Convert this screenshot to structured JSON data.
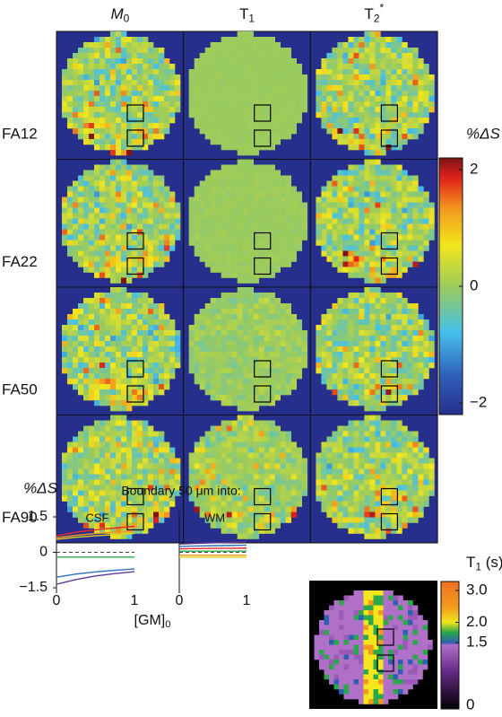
{
  "figure": {
    "columns": [
      {
        "text": "M",
        "sub": "0"
      },
      {
        "text": "T",
        "sub": "1"
      },
      {
        "text": "T",
        "sub": "2",
        "sup": "*"
      }
    ],
    "rows": [
      "FA12",
      "FA22",
      "FA50",
      "FA90"
    ],
    "colorbar": {
      "label": "%ΔS",
      "ylim": [
        -2.2,
        2.2
      ],
      "yticks": [
        2,
        0,
        {
          "value": -2,
          "label": "−2"
        }
      ]
    },
    "ylabel": "%ΔS",
    "subtitle": "Boundary 50 μm into:",
    "xlabel": {
      "text": "[GM]",
      "sub": "0"
    }
  },
  "chart_data": [
    {
      "type": "line",
      "title": "CSF",
      "x": [
        0,
        0.25,
        0.5,
        0.75,
        1
      ],
      "xlim": [
        0,
        1
      ],
      "xticks": [
        0,
        1
      ],
      "ylim": [
        -1.5,
        1.5
      ],
      "yticks": [
        1.5,
        0,
        {
          "value": -1.5,
          "label": "−1.5"
        }
      ],
      "series": [
        {
          "color": "#e8262d",
          "values": [
            0.7,
            0.85,
            0.95,
            1.03,
            1.1
          ]
        },
        {
          "color": "#f39a1e",
          "values": [
            0.62,
            0.72,
            0.8,
            0.86,
            0.9
          ]
        },
        {
          "color": "#e3d21b",
          "values": [
            0.55,
            0.64,
            0.7,
            0.75,
            0.8
          ]
        },
        {
          "color": "#2aa84a",
          "values": [
            -0.2,
            -0.2,
            -0.2,
            -0.2,
            -0.2
          ]
        },
        {
          "color": "#2f6fc0",
          "values": [
            -1.05,
            -0.92,
            -0.83,
            -0.76,
            -0.7
          ]
        },
        {
          "color": "#5b3a96",
          "values": [
            -1.35,
            -1.15,
            -1.0,
            -0.9,
            -0.82
          ]
        }
      ]
    },
    {
      "type": "line",
      "title": "WM",
      "x": [
        0,
        0.25,
        0.5,
        0.75,
        1
      ],
      "xlim": [
        0,
        1
      ],
      "xticks": [
        0,
        1
      ],
      "ylim": [
        -1.5,
        1.5
      ],
      "series": [
        {
          "color": "#5b3a96",
          "values": [
            0.35,
            0.38,
            0.4,
            0.42,
            0.44
          ]
        },
        {
          "color": "#2f6fc0",
          "values": [
            0.25,
            0.27,
            0.28,
            0.29,
            0.3
          ]
        },
        {
          "color": "#e8262d",
          "values": [
            0.15,
            0.16,
            0.17,
            0.17,
            0.18
          ]
        },
        {
          "color": "#2aa84a",
          "values": [
            0.05,
            0.05,
            0.05,
            0.05,
            0.05
          ]
        },
        {
          "color": "#f39a1e",
          "values": [
            -0.12,
            -0.12,
            -0.12,
            -0.12,
            -0.12
          ]
        },
        {
          "color": "#e3d21b",
          "values": [
            -0.2,
            -0.2,
            -0.2,
            -0.2,
            -0.2
          ]
        }
      ]
    }
  ],
  "t1_map": {
    "label": {
      "text": "T",
      "sub": "1",
      "suffix": " (s)"
    },
    "ticks": [
      {
        "value": 3,
        "label": "3.0"
      },
      {
        "value": 2,
        "label": "2.0"
      },
      {
        "value": 1.5,
        "label": "1.5"
      },
      0
    ]
  }
}
